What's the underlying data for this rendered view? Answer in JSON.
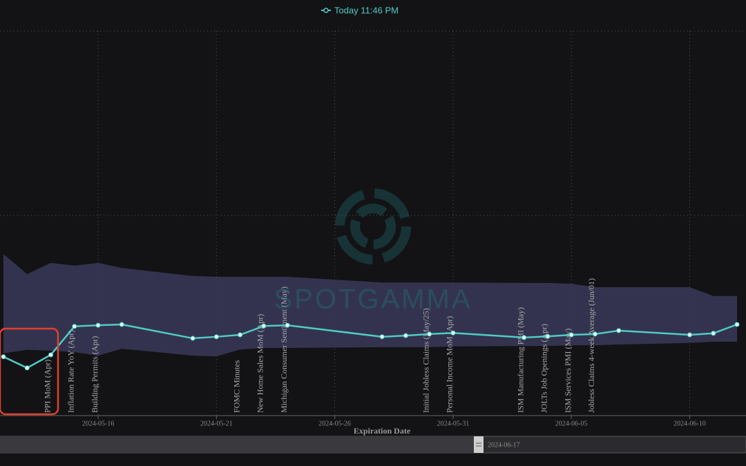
{
  "chart_data": {
    "type": "line",
    "legend_label": "Today 11:46 PM",
    "x_label": "Expiration Date",
    "watermark": "SPOTGAMMA",
    "x": [
      "2024-05-12",
      "2024-05-13",
      "2024-05-14",
      "2024-05-15",
      "2024-05-16",
      "2024-05-17",
      "2024-05-20",
      "2024-05-21",
      "2024-05-22",
      "2024-05-23",
      "2024-05-24",
      "2024-05-28",
      "2024-05-29",
      "2024-05-30",
      "2024-05-31",
      "2024-06-03",
      "2024-06-04",
      "2024-06-05",
      "2024-06-06",
      "2024-06-07",
      "2024-06-10",
      "2024-06-11",
      "2024-06-12"
    ],
    "series": [
      {
        "name": "Today 11:46 PM",
        "color": "#4ecdc4",
        "values": [
          15.3,
          12.4,
          15.8,
          23.2,
          23.5,
          23.7,
          20.1,
          20.5,
          21.0,
          23.3,
          23.5,
          20.5,
          20.8,
          21.2,
          21.5,
          20.3,
          20.6,
          21.0,
          21.2,
          22.1,
          21.0,
          21.4,
          23.7
        ]
      }
    ],
    "band": {
      "color": "#3b3959",
      "upper": [
        42.0,
        36.8,
        39.7,
        39.0,
        39.7,
        38.4,
        36.3,
        36.1,
        36.1,
        36.1,
        36.1,
        34.6,
        34.6,
        34.6,
        34.6,
        34.5,
        34.5,
        34.3,
        33.4,
        33.4,
        33.4,
        31.1,
        31.1
      ],
      "lower": [
        16.2,
        17.1,
        16.9,
        16.5,
        15.6,
        17.4,
        15.6,
        15.4,
        17.2,
        17.6,
        17.6,
        17.8,
        17.8,
        17.8,
        18.0,
        18.1,
        18.1,
        18.3,
        18.3,
        18.5,
        18.9,
        19.2,
        19.2
      ]
    },
    "events": [
      {
        "label": "PPI MoM (Apr)",
        "x": "2024-05-14"
      },
      {
        "label": "Inflation Rate YoY (Apr)",
        "x": "2024-05-15"
      },
      {
        "label": "Building Permits (Apr)",
        "x": "2024-05-16"
      },
      {
        "label": "FOMC Minutes",
        "x": "2024-05-22"
      },
      {
        "label": "New Home Sales MoM (Apr)",
        "x": "2024-05-23"
      },
      {
        "label": "Michigan Consumer Sentiment (May)",
        "x": "2024-05-24"
      },
      {
        "label": "Initial Jobless Claims (May/25)",
        "x": "2024-05-30"
      },
      {
        "label": "Personal Income MoM (Apr)",
        "x": "2024-05-31"
      },
      {
        "label": "ISM Manufacturing PMI (May)",
        "x": "2024-06-03"
      },
      {
        "label": "JOLTs Job Openings (Apr)",
        "x": "2024-06-04"
      },
      {
        "label": "ISM Services PMI (May)",
        "x": "2024-06-05"
      },
      {
        "label": "Jobless Claims 4-week Average (Jun/01)",
        "x": "2024-06-06"
      }
    ],
    "xlim": [
      "2024-05-12",
      "2024-06-12"
    ],
    "xticks": [
      "2024-05-16",
      "2024-05-21",
      "2024-05-26",
      "2024-05-31",
      "2024-06-05",
      "2024-06-10"
    ],
    "ylim": [
      0,
      100
    ],
    "range_slider_label": "2024-06-17"
  }
}
